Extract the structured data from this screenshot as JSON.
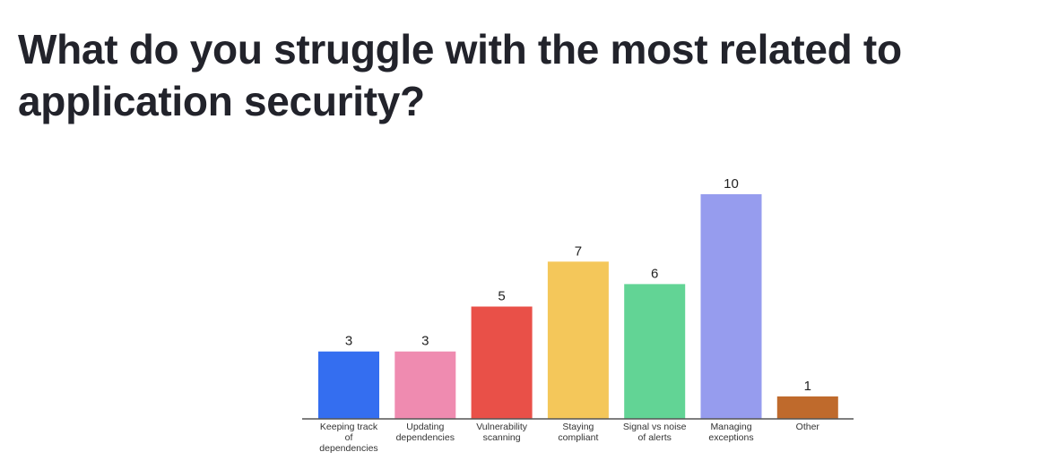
{
  "chart_data": {
    "type": "bar",
    "title": "What do you struggle with the most related to application security?",
    "categories": [
      [
        "Keeping track",
        "of",
        "dependencies"
      ],
      [
        "Updating",
        "dependencies"
      ],
      [
        "Vulnerability",
        "scanning"
      ],
      [
        "Staying",
        "compliant"
      ],
      [
        "Signal vs noise",
        "of alerts"
      ],
      [
        "Managing",
        "exceptions"
      ],
      [
        "Other"
      ]
    ],
    "values": [
      3,
      3,
      5,
      7,
      6,
      10,
      1
    ],
    "colors": [
      "#346ef0",
      "#ef8bb0",
      "#e95048",
      "#f4c75a",
      "#62d495",
      "#969cee",
      "#bf6a2c"
    ],
    "ylim": [
      0,
      10
    ],
    "grid": false,
    "legend": "none",
    "xlabel": "",
    "ylabel": ""
  }
}
